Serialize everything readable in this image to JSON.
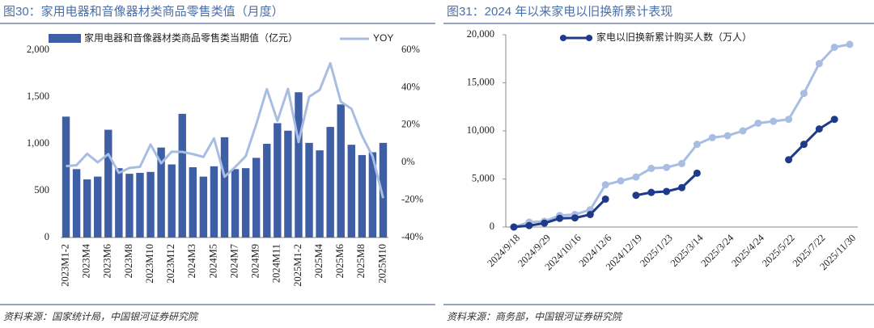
{
  "chart_data": [
    {
      "type": "bar",
      "title": "图30：家用电器和音像器材类商品零售类值（月度）",
      "source": "资料来源：国家统计局，中国银河证券研究院",
      "categories": [
        "2023M1-2",
        null,
        "2023M4",
        null,
        "2023M6",
        null,
        "2023M8",
        null,
        "2023M10",
        null,
        "2023M12",
        null,
        "2024M3",
        null,
        "2024M5",
        null,
        "2024M7",
        null,
        "2024M9",
        null,
        "2024M11",
        null,
        "2025M1-2",
        null,
        "2025M4",
        null,
        "2025M6",
        null,
        "2025M8",
        null,
        "2025M10"
      ],
      "series": [
        {
          "name": "家用电器和音像器材类商品零售类当期值（亿元）",
          "type": "bar",
          "color": "#3e5ea6",
          "values": [
            1290,
            730,
            620,
            650,
            1150,
            740,
            680,
            690,
            700,
            960,
            780,
            1320,
            750,
            650,
            760,
            1070,
            730,
            740,
            850,
            1000,
            1220,
            1140,
            1550,
            1010,
            930,
            1180,
            1420,
            990,
            880,
            910,
            1010
          ]
        },
        {
          "name": "YOY",
          "type": "line",
          "axis": "y2",
          "color": "#a9bde3",
          "values": [
            -1.9,
            -1.4,
            4.7,
            0.1,
            4.5,
            -5.5,
            -2.9,
            -2.3,
            9.6,
            -0.4,
            5.8,
            5.7,
            4.5,
            3.0,
            12.9,
            -7.6,
            -2.4,
            3.4,
            20.5,
            39.2,
            22.2,
            39.3,
            10.9,
            35.1,
            38.8,
            53.0,
            32.4,
            28.7,
            14.3,
            3.3,
            -19.0
          ]
        }
      ],
      "ylim": [
        0,
        2000
      ],
      "yticks": [
        0,
        500,
        {
          "value": 1000,
          "label": "1,000"
        },
        {
          "value": 1500,
          "label": "1,500"
        },
        {
          "value": 2000,
          "label": "2,000"
        }
      ],
      "y2lim": [
        -40,
        60
      ],
      "y2ticks": [
        {
          "value": -40,
          "label": "-40%"
        },
        {
          "value": -20,
          "label": "-20%"
        },
        {
          "value": 0,
          "label": "0%"
        },
        {
          "value": 20,
          "label": "20%"
        },
        {
          "value": 40,
          "label": "40%"
        },
        {
          "value": 60,
          "label": "60%"
        }
      ],
      "legend": "top",
      "grid": false
    },
    {
      "type": "line",
      "title": "图31：2024 年以来家电以旧换新累计表现",
      "source": "资料来源：商务部，中国银河证券研究院",
      "categories": [
        "2024/9/18",
        null,
        "2024/9/29",
        null,
        "2024/10/16",
        null,
        "2024/12/6",
        null,
        "2024/12/19",
        null,
        "2025/1/23",
        null,
        "2025/3/14",
        null,
        "2025/3/24",
        null,
        "2025/4/24",
        null,
        "2025/5/22",
        null,
        "2025/7/22",
        null,
        "2025/11/30"
      ],
      "series": [
        {
          "color": "#a9bde3",
          "values": [
            0,
            500,
            600,
            1200,
            1300,
            1800,
            4400,
            4800,
            5200,
            6100,
            6200,
            6600,
            8600,
            9300,
            9500,
            10000,
            10800,
            11000,
            11200,
            13900,
            17000,
            18700,
            19000
          ]
        },
        {
          "name": "家电以旧换新累计购买人数（万人）",
          "color": "#1f3a8a",
          "values": [
            0,
            150,
            400,
            900,
            950,
            1300,
            2900,
            null,
            3300,
            3600,
            3700,
            4100,
            5600,
            null,
            null,
            null,
            null,
            null,
            7000,
            8600,
            10200,
            11200,
            null
          ]
        }
      ],
      "ylim": [
        0,
        20000
      ],
      "yticks": [
        0,
        {
          "value": 5000,
          "label": "5,000"
        },
        {
          "value": 10000,
          "label": "10,000"
        },
        {
          "value": 15000,
          "label": "15,000"
        },
        {
          "value": 20000,
          "label": "20,000"
        }
      ],
      "legend": "top",
      "grid": false
    }
  ]
}
